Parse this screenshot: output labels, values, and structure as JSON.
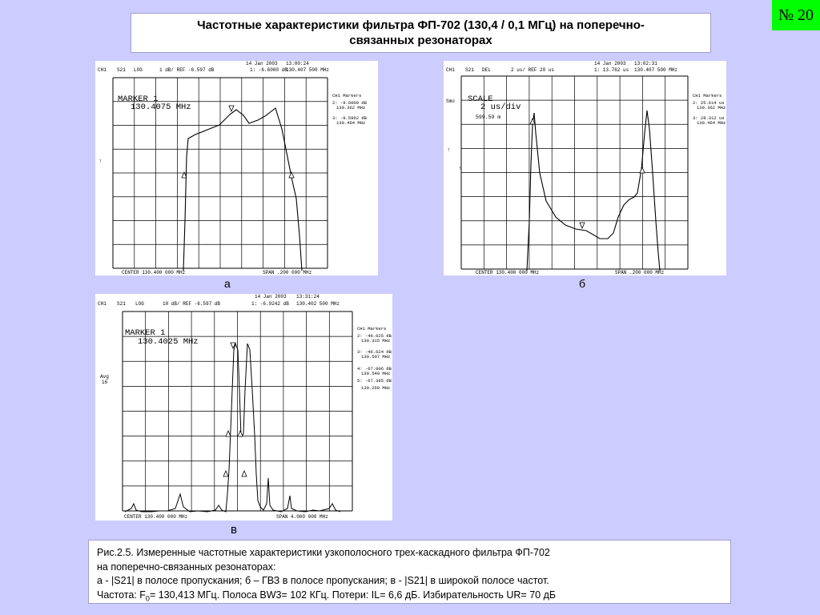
{
  "slide_number": "№ 20",
  "title_line1": "Частотные характеристики фильтра ФП-702 (130,4 / 0,1 МГц) на поперечно-",
  "title_line2": "связанных резонаторах",
  "panels": {
    "a": {
      "label": "а",
      "date": "14 Jan 2003",
      "time": "13:00:24",
      "header_left": "CH1",
      "header_param": "S21",
      "header_fmt": "LOG",
      "header_scale": "1 dB/ REF -6.597 dB",
      "header_marker": "1: -6.6000 dB",
      "header_freq": "130.407 500 MHz",
      "marker_line1": "MARKER 1",
      "marker_line2": "130.4075 MHz",
      "side_title": "CH1 Markers",
      "side_entries": [
        [
          "2: -9.6009 dB",
          "130.362 MHz"
        ],
        [
          "3: -9.5962 dB",
          "130.464 MHz"
        ]
      ],
      "footer_center": "CENTER 130.400 000 MHz",
      "footer_span": "SPAN .200 000 MHz"
    },
    "b": {
      "label": "б",
      "date": "14 Jan 2003",
      "time": "13:02:31",
      "header_left": "CH1",
      "header_param": "S21",
      "header_fmt": "DEL",
      "header_scale": "2 us/ REF 20 us",
      "header_marker": "1: 13.762 us",
      "header_freq": "130.407 500 MHz",
      "smo_label": "Smo",
      "marker_line1": "SCALE",
      "marker_line2": "2 us/div",
      "marker_line3": "599.59 m",
      "side_title": "CH1 Markers",
      "side_entries": [
        [
          "2: 25.614 us",
          "130.362 MHz"
        ],
        [
          "3: 28.312 us",
          "130.464 MHz"
        ]
      ],
      "footer_center": "CENTER 130.400 000 MHz",
      "footer_span": "SPAN .200 000 MHz"
    },
    "c": {
      "label": "в",
      "date": "14 Jan 2003",
      "time": "13:31:24",
      "header_left": "CH1",
      "header_param": "S21",
      "header_fmt": "LOG",
      "header_scale": "10 dB/ REF -6.597 dB",
      "header_marker": "1: -6.9242 dB",
      "header_freq": "130.402 500 MHz",
      "avg_label": "Avg",
      "avg_value": "16",
      "marker_line1": "MARKER 1",
      "marker_line2": "130.4025 MHz",
      "side_title": "CH1 Markers",
      "side_entries": [
        [
          "2: -46.625 dB",
          "130.315 MHz"
        ],
        [
          "3: -46.624 dB",
          "130.507 MHz"
        ],
        [
          "4: -67.006 dB",
          "130.549 MHz"
        ],
        [
          "5: -67.395 dB",
          "130.269 MHz"
        ]
      ],
      "footer_center": "CENTER 130.400 000 MHz",
      "footer_span": "SPAN 4.000 000 MHz"
    }
  },
  "caption": {
    "line1": "Рис.2.5. Измеренные частотные характеристики узкополосного трех-каскадного фильтра ФП-702",
    "line2": "на поперечно-связанных резонаторах:",
    "line3": "а - |S21| в полосе пропускания; б – ГВЗ в полосе пропускания; в - |S21| в широкой полосе частот.",
    "line4_pre": "Частота: F",
    "line4_sub": "0",
    "line4_post": "= 130,413 МГц. Полоса BW3= 102 КГц. Потери: IL= 6,6 дБ. Избирательность UR= 70 дБ"
  }
}
